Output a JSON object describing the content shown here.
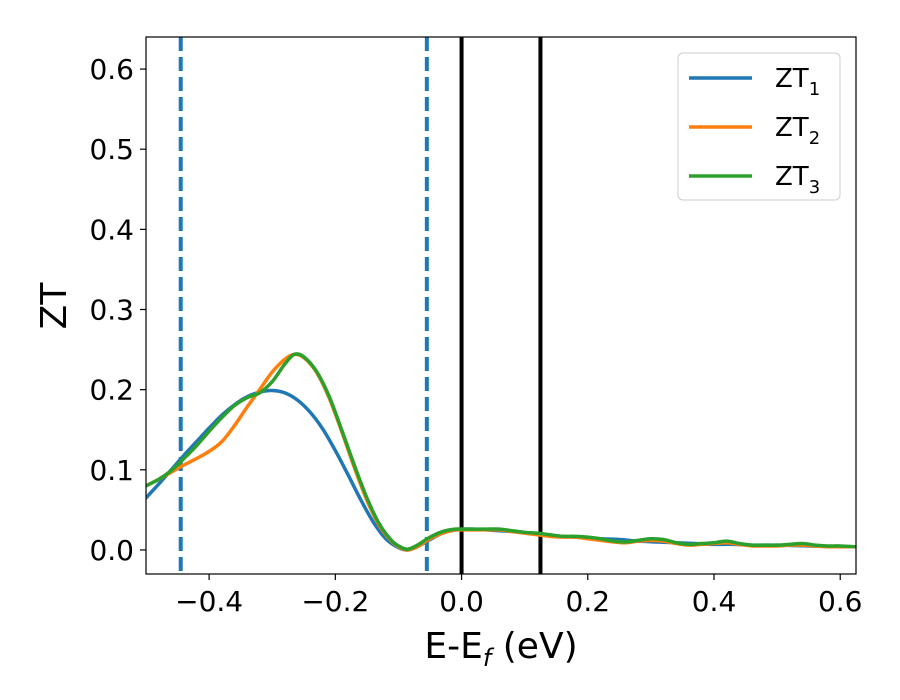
{
  "chart_data": {
    "type": "line",
    "xlabel": "E-E",
    "xlabel_sub": "f",
    "xlabel_unit": " (eV)",
    "ylabel": "ZT",
    "xlim": [
      -0.5,
      0.625
    ],
    "ylim": [
      -0.03,
      0.64
    ],
    "grid": false,
    "legend_position": "top-right",
    "x_ticks": [
      {
        "value": -0.4,
        "label": "−0.4"
      },
      {
        "value": -0.2,
        "label": "−0.2"
      },
      {
        "value": 0.0,
        "label": "0.0"
      },
      {
        "value": 0.2,
        "label": "0.2"
      },
      {
        "value": 0.4,
        "label": "0.4"
      },
      {
        "value": 0.6,
        "label": "0.6"
      }
    ],
    "y_ticks": [
      {
        "value": 0.0,
        "label": "0.0"
      },
      {
        "value": 0.1,
        "label": "0.1"
      },
      {
        "value": 0.2,
        "label": "0.2"
      },
      {
        "value": 0.3,
        "label": "0.3"
      },
      {
        "value": 0.4,
        "label": "0.4"
      },
      {
        "value": 0.5,
        "label": "0.5"
      },
      {
        "value": 0.6,
        "label": "0.6"
      }
    ],
    "vlines": [
      {
        "x": -0.445,
        "color": "#1f77b4",
        "style": "dashed"
      },
      {
        "x": -0.055,
        "color": "#1f77b4",
        "style": "dashed"
      },
      {
        "x": 0.0,
        "color": "#000000",
        "style": "solid"
      },
      {
        "x": 0.125,
        "color": "#000000",
        "style": "solid"
      }
    ],
    "series": [
      {
        "name": "ZT",
        "sub": "1",
        "color": "#1f77b4",
        "points": [
          [
            -0.5,
            0.065
          ],
          [
            -0.48,
            0.082
          ],
          [
            -0.46,
            0.1
          ],
          [
            -0.44,
            0.118
          ],
          [
            -0.42,
            0.135
          ],
          [
            -0.4,
            0.152
          ],
          [
            -0.38,
            0.168
          ],
          [
            -0.36,
            0.181
          ],
          [
            -0.34,
            0.191
          ],
          [
            -0.32,
            0.197
          ],
          [
            -0.3,
            0.199
          ],
          [
            -0.28,
            0.196
          ],
          [
            -0.26,
            0.187
          ],
          [
            -0.24,
            0.172
          ],
          [
            -0.22,
            0.151
          ],
          [
            -0.2,
            0.124
          ],
          [
            -0.18,
            0.094
          ],
          [
            -0.16,
            0.063
          ],
          [
            -0.14,
            0.035
          ],
          [
            -0.12,
            0.014
          ],
          [
            -0.1,
            0.003
          ],
          [
            -0.085,
            0.0
          ],
          [
            -0.07,
            0.004
          ],
          [
            -0.05,
            0.013
          ],
          [
            -0.03,
            0.021
          ],
          [
            -0.01,
            0.025
          ],
          [
            0.0,
            0.026
          ],
          [
            0.02,
            0.026
          ],
          [
            0.04,
            0.025
          ],
          [
            0.06,
            0.024
          ],
          [
            0.08,
            0.023
          ],
          [
            0.1,
            0.021
          ],
          [
            0.12,
            0.02
          ],
          [
            0.14,
            0.018
          ],
          [
            0.16,
            0.017
          ],
          [
            0.18,
            0.016
          ],
          [
            0.2,
            0.015
          ],
          [
            0.22,
            0.014
          ],
          [
            0.25,
            0.013
          ],
          [
            0.28,
            0.011
          ],
          [
            0.31,
            0.01
          ],
          [
            0.34,
            0.009
          ],
          [
            0.37,
            0.008
          ],
          [
            0.4,
            0.007
          ],
          [
            0.43,
            0.007
          ],
          [
            0.46,
            0.006
          ],
          [
            0.5,
            0.006
          ],
          [
            0.55,
            0.005
          ],
          [
            0.6,
            0.004
          ],
          [
            0.625,
            0.004
          ]
        ]
      },
      {
        "name": "ZT",
        "sub": "2",
        "color": "#ff7f0e",
        "points": [
          [
            -0.5,
            0.08
          ],
          [
            -0.48,
            0.088
          ],
          [
            -0.46,
            0.097
          ],
          [
            -0.44,
            0.106
          ],
          [
            -0.42,
            0.114
          ],
          [
            -0.4,
            0.123
          ],
          [
            -0.38,
            0.135
          ],
          [
            -0.36,
            0.155
          ],
          [
            -0.34,
            0.178
          ],
          [
            -0.32,
            0.2
          ],
          [
            -0.3,
            0.222
          ],
          [
            -0.28,
            0.238
          ],
          [
            -0.265,
            0.244
          ],
          [
            -0.25,
            0.24
          ],
          [
            -0.23,
            0.222
          ],
          [
            -0.21,
            0.19
          ],
          [
            -0.19,
            0.148
          ],
          [
            -0.17,
            0.103
          ],
          [
            -0.15,
            0.062
          ],
          [
            -0.13,
            0.03
          ],
          [
            -0.11,
            0.01
          ],
          [
            -0.095,
            0.002
          ],
          [
            -0.085,
            0.0
          ],
          [
            -0.07,
            0.004
          ],
          [
            -0.05,
            0.014
          ],
          [
            -0.03,
            0.021
          ],
          [
            -0.01,
            0.025
          ],
          [
            0.0,
            0.025
          ],
          [
            0.02,
            0.025
          ],
          [
            0.04,
            0.025
          ],
          [
            0.06,
            0.025
          ],
          [
            0.08,
            0.023
          ],
          [
            0.1,
            0.021
          ],
          [
            0.12,
            0.019
          ],
          [
            0.14,
            0.017
          ],
          [
            0.16,
            0.016
          ],
          [
            0.18,
            0.016
          ],
          [
            0.2,
            0.014
          ],
          [
            0.22,
            0.012
          ],
          [
            0.24,
            0.01
          ],
          [
            0.26,
            0.009
          ],
          [
            0.28,
            0.011
          ],
          [
            0.3,
            0.012
          ],
          [
            0.32,
            0.011
          ],
          [
            0.34,
            0.008
          ],
          [
            0.36,
            0.006
          ],
          [
            0.38,
            0.007
          ],
          [
            0.4,
            0.008
          ],
          [
            0.42,
            0.009
          ],
          [
            0.44,
            0.007
          ],
          [
            0.46,
            0.005
          ],
          [
            0.48,
            0.005
          ],
          [
            0.5,
            0.005
          ],
          [
            0.52,
            0.006
          ],
          [
            0.54,
            0.006
          ],
          [
            0.56,
            0.005
          ],
          [
            0.58,
            0.004
          ],
          [
            0.6,
            0.004
          ],
          [
            0.625,
            0.004
          ]
        ]
      },
      {
        "name": "ZT",
        "sub": "3",
        "color": "#2ca02c",
        "points": [
          [
            -0.5,
            0.08
          ],
          [
            -0.48,
            0.088
          ],
          [
            -0.46,
            0.099
          ],
          [
            -0.44,
            0.114
          ],
          [
            -0.42,
            0.13
          ],
          [
            -0.4,
            0.148
          ],
          [
            -0.38,
            0.165
          ],
          [
            -0.36,
            0.18
          ],
          [
            -0.34,
            0.19
          ],
          [
            -0.32,
            0.196
          ],
          [
            -0.3,
            0.21
          ],
          [
            -0.28,
            0.232
          ],
          [
            -0.265,
            0.244
          ],
          [
            -0.25,
            0.241
          ],
          [
            -0.23,
            0.223
          ],
          [
            -0.21,
            0.192
          ],
          [
            -0.19,
            0.15
          ],
          [
            -0.17,
            0.106
          ],
          [
            -0.15,
            0.065
          ],
          [
            -0.13,
            0.032
          ],
          [
            -0.11,
            0.011
          ],
          [
            -0.095,
            0.003
          ],
          [
            -0.085,
            0.001
          ],
          [
            -0.07,
            0.006
          ],
          [
            -0.05,
            0.016
          ],
          [
            -0.03,
            0.023
          ],
          [
            -0.01,
            0.026
          ],
          [
            0.0,
            0.026
          ],
          [
            0.02,
            0.026
          ],
          [
            0.04,
            0.026
          ],
          [
            0.06,
            0.026
          ],
          [
            0.08,
            0.024
          ],
          [
            0.1,
            0.022
          ],
          [
            0.12,
            0.021
          ],
          [
            0.14,
            0.019
          ],
          [
            0.16,
            0.017
          ],
          [
            0.18,
            0.017
          ],
          [
            0.2,
            0.016
          ],
          [
            0.22,
            0.014
          ],
          [
            0.24,
            0.011
          ],
          [
            0.26,
            0.01
          ],
          [
            0.28,
            0.012
          ],
          [
            0.3,
            0.014
          ],
          [
            0.32,
            0.013
          ],
          [
            0.34,
            0.009
          ],
          [
            0.36,
            0.007
          ],
          [
            0.38,
            0.008
          ],
          [
            0.4,
            0.009
          ],
          [
            0.42,
            0.011
          ],
          [
            0.44,
            0.008
          ],
          [
            0.46,
            0.006
          ],
          [
            0.48,
            0.006
          ],
          [
            0.5,
            0.006
          ],
          [
            0.52,
            0.007
          ],
          [
            0.54,
            0.008
          ],
          [
            0.56,
            0.006
          ],
          [
            0.58,
            0.005
          ],
          [
            0.6,
            0.005
          ],
          [
            0.625,
            0.004
          ]
        ]
      }
    ]
  }
}
